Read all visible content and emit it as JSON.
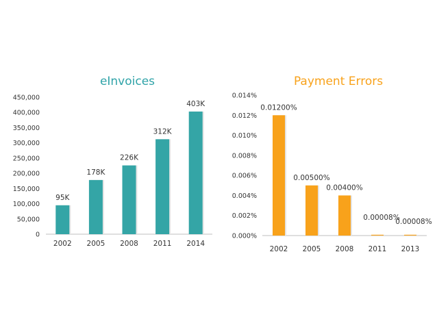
{
  "colors": {
    "left_bars": "#34A5A6",
    "right_bars": "#F8A21B",
    "left_title": "#2FA3A8",
    "right_title": "#F8A21B",
    "axis": "#BFBFBF",
    "text": "#333333"
  },
  "chart_data": [
    {
      "type": "bar",
      "title": "eInvoices",
      "categories": [
        "2002",
        "2005",
        "2008",
        "2011",
        "2014"
      ],
      "values": [
        95000,
        178000,
        226000,
        312000,
        403000
      ],
      "data_labels": [
        "95K",
        "178K",
        "226K",
        "312K",
        "403K"
      ],
      "ylim": [
        0,
        450000
      ],
      "yticks": [
        0,
        50000,
        100000,
        150000,
        200000,
        250000,
        300000,
        350000,
        400000,
        450000
      ],
      "ytick_labels": [
        "0",
        "50,000",
        "100,000",
        "150,000",
        "200,000",
        "250,000",
        "300,000",
        "350,000",
        "400,000",
        "450,000"
      ],
      "xlabel": "",
      "ylabel": "",
      "grid": false,
      "legend": "none"
    },
    {
      "type": "bar",
      "title": "Payment Errors",
      "categories": [
        "2002",
        "2005",
        "2008",
        "2011",
        "2013"
      ],
      "values": [
        0.012,
        0.005,
        0.004,
        8e-05,
        8e-05
      ],
      "data_labels": [
        "0.01200%",
        "0.00500%",
        "0.00400%",
        "0.00008%",
        "0.00008%"
      ],
      "ylim": [
        0,
        0.014
      ],
      "yticks": [
        0,
        0.002,
        0.004,
        0.006,
        0.008,
        0.01,
        0.012,
        0.014
      ],
      "ytick_labels": [
        "0.000%",
        "0.002%",
        "0.004%",
        "0.006%",
        "0.008%",
        "0.010%",
        "0.012%",
        "0.014%"
      ],
      "xlabel": "",
      "ylabel": "",
      "grid": false,
      "legend": "none"
    }
  ]
}
